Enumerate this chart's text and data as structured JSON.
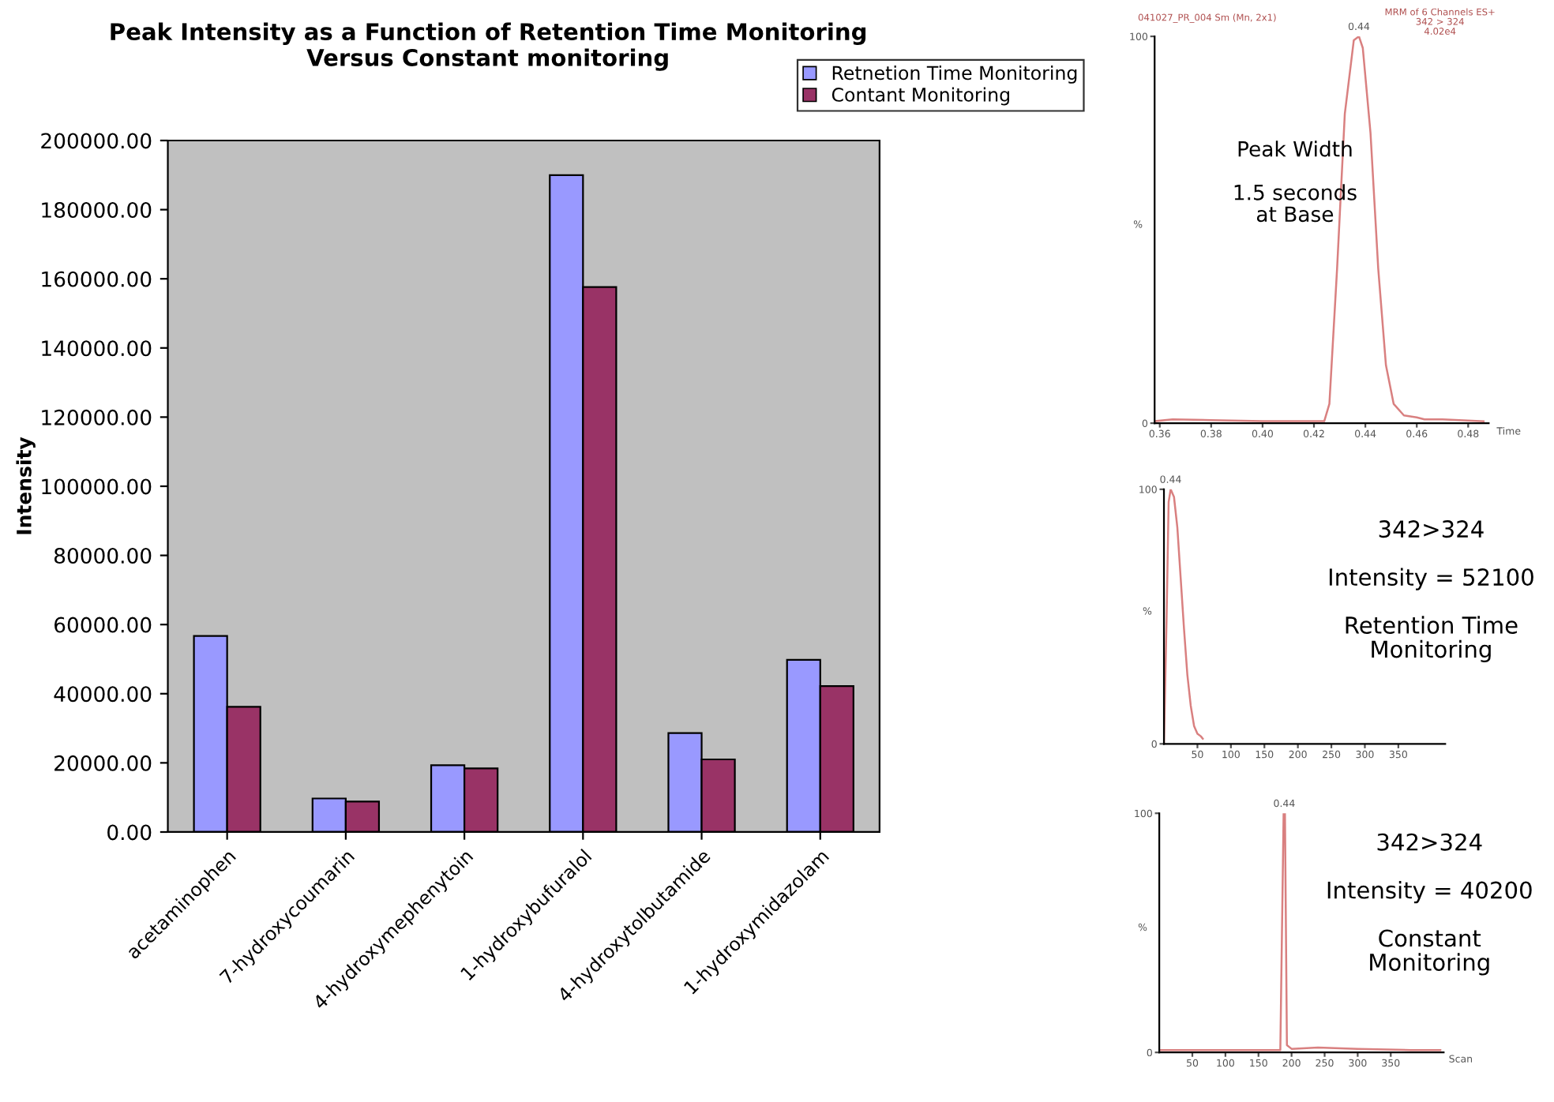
{
  "chart_data": [
    {
      "type": "bar",
      "title": "Peak Intensity as a Function of Retention Time Monitoring\nVersus Constant monitoring",
      "ylabel": "Intensity",
      "categories": [
        "acetaminophen",
        "7-hydroxycoumarin",
        "4-hydroxymephenytoin",
        "1-hydroxybufuralol",
        "4-hydroxytolbutamide",
        "1-hydroxymidazolam"
      ],
      "series": [
        {
          "name": "Retnetion Time Monitoring",
          "color": "#9999ff",
          "values": [
            56700,
            9700,
            19300,
            190000,
            28600,
            49800
          ]
        },
        {
          "name": "Contant Monitoring",
          "color": "#993366",
          "values": [
            36200,
            8800,
            18400,
            157600,
            21000,
            42200
          ]
        }
      ],
      "ylim": [
        0,
        200000
      ],
      "yticks": [
        {
          "value": 0,
          "label": "0.00"
        },
        {
          "value": 20000,
          "label": "20000.00"
        },
        {
          "value": 40000,
          "label": "40000.00"
        },
        {
          "value": 60000,
          "label": "60000.00"
        },
        {
          "value": 80000,
          "label": "80000.00"
        },
        {
          "value": 100000,
          "label": "100000.00"
        },
        {
          "value": 120000,
          "label": "120000.00"
        },
        {
          "value": 140000,
          "label": "140000.00"
        },
        {
          "value": 160000,
          "label": "160000.00"
        },
        {
          "value": 180000,
          "label": "180000.00"
        },
        {
          "value": 200000,
          "label": "200000.00"
        }
      ],
      "grid": false,
      "legend": "top right"
    },
    {
      "type": "line",
      "xlabel": "Time",
      "ylabel": "%",
      "series": [
        {
          "color": "#d98080",
          "x": [
            0.358,
            0.365,
            0.38,
            0.4,
            0.42,
            0.424,
            0.426,
            0.429,
            0.432,
            0.4355,
            0.4375,
            0.439,
            0.442,
            0.445,
            0.448,
            0.451,
            0.455,
            0.46,
            0.463,
            0.47,
            0.486
          ],
          "values": [
            0.5,
            1,
            0.8,
            0.5,
            0.5,
            0.5,
            5,
            40,
            80,
            99,
            100,
            97,
            75,
            40,
            15,
            5,
            2,
            1.5,
            1,
            1,
            0.5
          ]
        }
      ],
      "xlim": [
        0.358,
        0.488
      ],
      "xticks": [
        {
          "value": 0.36,
          "label": "0.36"
        },
        {
          "value": 0.38,
          "label": "0.38"
        },
        {
          "value": 0.4,
          "label": "0.40"
        },
        {
          "value": 0.42,
          "label": "0.42"
        },
        {
          "value": 0.44,
          "label": "0.44"
        },
        {
          "value": 0.46,
          "label": "0.46"
        },
        {
          "value": 0.48,
          "label": "0.48"
        }
      ],
      "ylim": [
        0,
        100
      ],
      "yticks": [
        0,
        100
      ],
      "annotations": [
        "041027_PR_004 Sm (Mn, 2x1)",
        "MRM of 6 Channels ES+\n342 > 324\n4.02e4",
        "Peak Width\n\n1.5 seconds\nat Base",
        {
          "text": "0.44",
          "x": 0.4375,
          "y": 100
        }
      ]
    },
    {
      "type": "line",
      "ylabel": "%",
      "series": [
        {
          "color": "#d98080",
          "x": [
            0,
            4,
            7,
            10,
            15,
            20,
            25,
            30,
            35,
            40,
            45,
            50,
            55,
            58
          ],
          "values": [
            0,
            50,
            95,
            100,
            97,
            85,
            65,
            45,
            27,
            15,
            7,
            4,
            3,
            2
          ]
        }
      ],
      "xlim": [
        0,
        420
      ],
      "xticks": [
        50,
        100,
        150,
        200,
        250,
        300,
        350
      ],
      "ylim": [
        0,
        100
      ],
      "yticks": [
        0,
        100
      ],
      "annotations": [
        "342>324\n\nIntensity = 52100\n\nRetention Time\nMonitoring",
        {
          "text": "0.44",
          "x": 10,
          "y": 100
        }
      ]
    },
    {
      "type": "line",
      "xlabel": "Scan",
      "ylabel": "%",
      "series": [
        {
          "color": "#d98080",
          "x": [
            0,
            50,
            100,
            150,
            183,
            186,
            188,
            190,
            193,
            200,
            240,
            300,
            380,
            425
          ],
          "values": [
            1,
            1,
            1,
            1,
            1,
            60,
            100,
            100,
            3,
            1.5,
            2,
            1.5,
            1,
            1
          ]
        }
      ],
      "xlim": [
        0,
        430
      ],
      "xticks": [
        50,
        100,
        150,
        200,
        250,
        300,
        350
      ],
      "ylim": [
        0,
        100
      ],
      "yticks": [
        0,
        100
      ],
      "annotations": [
        "342>324\n\nIntensity = 40200\n\nConstant\nMonitoring",
        {
          "text": "0.44",
          "x": 189,
          "y": 100
        }
      ]
    }
  ]
}
